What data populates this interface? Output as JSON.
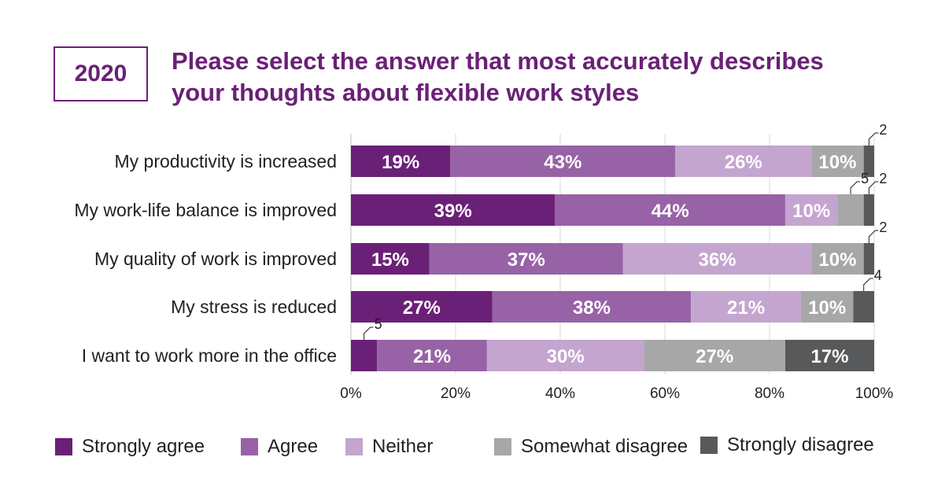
{
  "header": {
    "year": "2020",
    "title_line1": "Please select the answer that most accurately describes",
    "title_line2": "your thoughts about flexible work styles"
  },
  "chart_data": {
    "type": "bar",
    "orientation": "horizontal",
    "stacked": true,
    "title": "Please select the answer that most accurately describes your thoughts about flexible work styles",
    "categories": [
      "My productivity is increased",
      "My work-life balance is improved",
      "My quality of work is improved",
      "My stress is reduced",
      "I want to work more in the office"
    ],
    "series": [
      {
        "name": "Strongly agree",
        "color": "#6b2077",
        "values": [
          19,
          39,
          15,
          27,
          5
        ],
        "labels": [
          "19%",
          "39%",
          "15%",
          "27%",
          "5"
        ]
      },
      {
        "name": "Agree",
        "color": "#9763a6",
        "values": [
          43,
          44,
          37,
          38,
          21
        ],
        "labels": [
          "43%",
          "44%",
          "37%",
          "38%",
          "21%"
        ]
      },
      {
        "name": "Neither",
        "color": "#c4a5cf",
        "values": [
          26,
          10,
          36,
          21,
          30
        ],
        "labels": [
          "26%",
          "10%",
          "36%",
          "21%",
          "30%"
        ]
      },
      {
        "name": "Somewhat disagree",
        "color": "#a7a7a7",
        "values": [
          10,
          5,
          10,
          10,
          27
        ],
        "labels": [
          "10%",
          "5",
          "10%",
          "10%",
          "27%"
        ]
      },
      {
        "name": "Strongly disagree",
        "color": "#58595b",
        "values": [
          2,
          2,
          2,
          4,
          17
        ],
        "labels": [
          "2",
          "2",
          "2",
          "4",
          "17%"
        ]
      }
    ],
    "xlim": [
      0,
      100
    ],
    "xticks": [
      "0%",
      "20%",
      "40%",
      "60%",
      "80%",
      "100%"
    ],
    "grid": true,
    "legend_position": "bottom"
  }
}
